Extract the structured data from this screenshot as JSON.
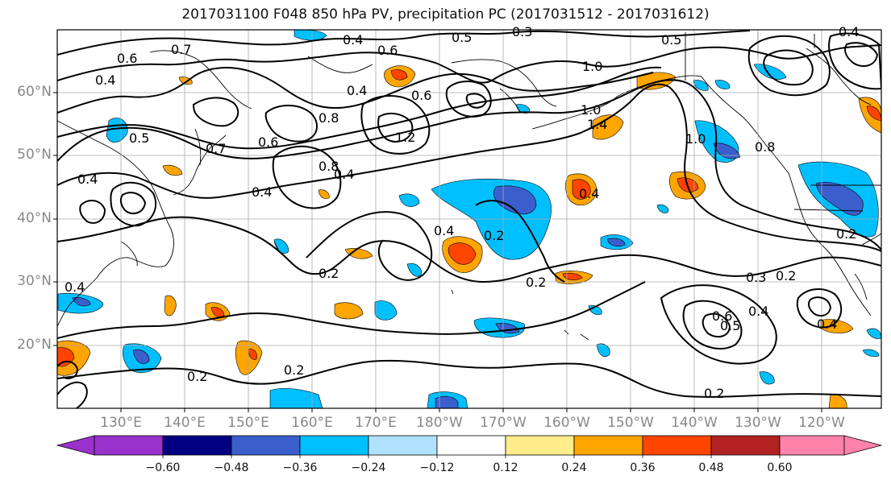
{
  "title": "2017031100 F048 850 hPa PV, precipitation PC (2017031512 - 2017031612)",
  "lat_labels": [
    "60°N",
    "50°N",
    "40°N",
    "30°N",
    "20°N"
  ],
  "lon_labels": [
    "130°E",
    "140°E",
    "150°E",
    "160°E",
    "170°E",
    "180°W",
    "170°W",
    "160°W",
    "150°W",
    "140°W",
    "130°W",
    "120°W"
  ],
  "contour_labels": [
    "0.4",
    "0.5",
    "0.3",
    "0.4",
    "0.6",
    "0.7",
    "0.6",
    "0.4",
    "0.5",
    "0.4",
    "0.7",
    "0.6",
    "0.4",
    "0.8",
    "0.6",
    "0.4",
    "0.8",
    "1.0",
    "0.5",
    "1.0",
    "1.2",
    "1.4",
    "0.4",
    "0.2",
    "0.4",
    "0.2",
    "0.2",
    "0.3",
    "0.2",
    "0.4",
    "0.5",
    "0.6",
    "0.2",
    "0.2",
    "0.2",
    "0.4",
    "1.0",
    "0.4",
    "0.8",
    "0.2",
    "0.4"
  ],
  "colorbar": {
    "tick_labels": [
      "−0.60",
      "−0.48",
      "−0.36",
      "−0.24",
      "−0.12",
      "0.12",
      "0.24",
      "0.36",
      "0.48",
      "0.60"
    ],
    "colors": [
      "#9932cc",
      "#000080",
      "#3a5fcd",
      "#00bfff",
      "#b0e2ff",
      "#ffffff",
      "#ffec8b",
      "#ffa500",
      "#ff4500",
      "#b22222",
      "#ff82ab"
    ]
  },
  "colors": {
    "contour": "#000000",
    "grid": "#aaaaaa",
    "coast": "#000000"
  }
}
